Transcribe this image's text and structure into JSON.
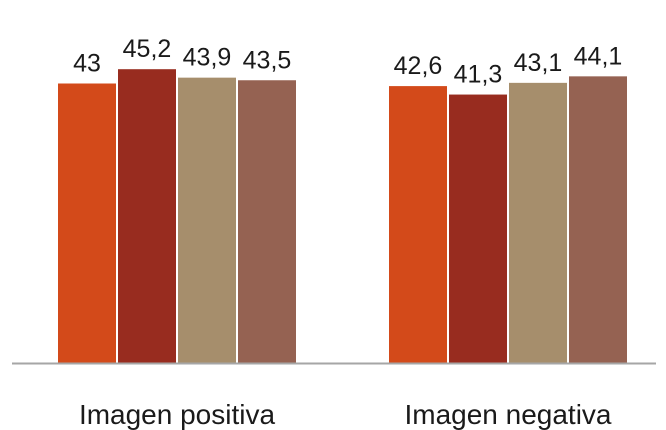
{
  "chart_data": {
    "type": "bar",
    "categories": [
      "Imagen positiva",
      "Imagen negativa"
    ],
    "series": [
      {
        "values": [
          43,
          42.6
        ],
        "labels": [
          "43",
          "42,6"
        ],
        "color": "#d34a1a"
      },
      {
        "values": [
          45.2,
          41.3
        ],
        "labels": [
          "45,2",
          "41,3"
        ],
        "color": "#982c1f"
      },
      {
        "values": [
          43.9,
          43.1
        ],
        "labels": [
          "43,9",
          "43,1"
        ],
        "color": "#a68e6c"
      },
      {
        "values": [
          43.5,
          44.1
        ],
        "labels": [
          "43,5",
          "44,1"
        ],
        "color": "#956252"
      }
    ],
    "title": "",
    "xlabel": "",
    "ylabel": "",
    "ylim": [
      0,
      50
    ],
    "grid": false,
    "legend": "none",
    "axis_color": "#a6a6a6"
  }
}
